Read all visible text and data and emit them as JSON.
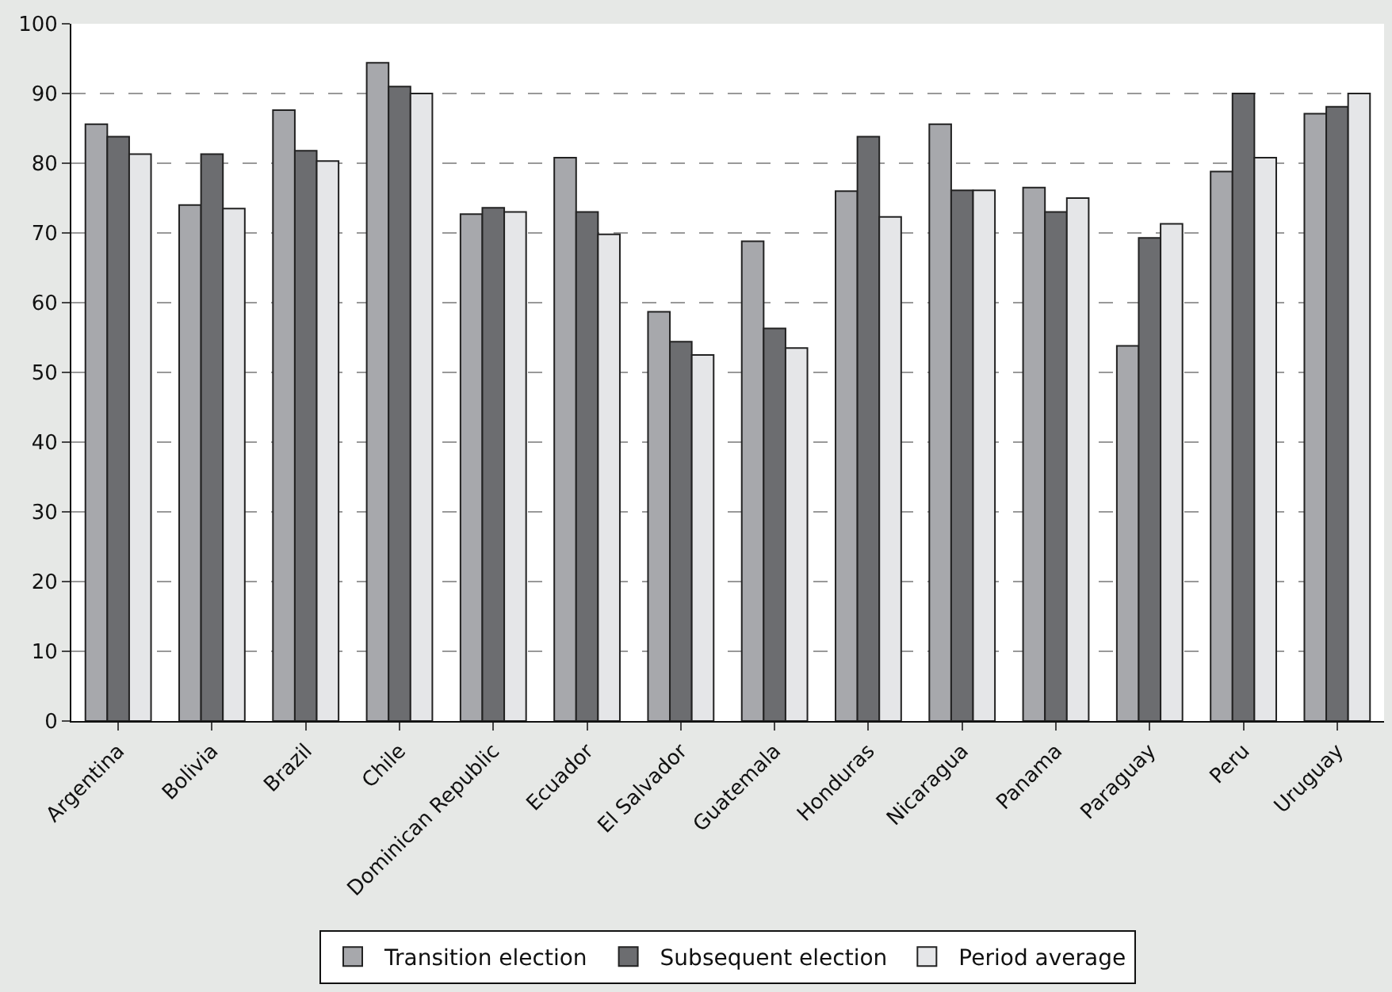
{
  "chart_data": {
    "type": "bar",
    "categories": [
      "Argentina",
      "Bolivia",
      "Brazil",
      "Chile",
      "Dominican Republic",
      "Ecuador",
      "El Salvador",
      "Guatemala",
      "Honduras",
      "Nicaragua",
      "Panama",
      "Paraguay",
      "Peru",
      "Uruguay"
    ],
    "series": [
      {
        "name": "Transition election",
        "color": "#a7a8ac",
        "values": [
          85.6,
          74,
          87.6,
          94.4,
          72.7,
          80.8,
          58.7,
          68.8,
          76,
          85.6,
          76.5,
          53.8,
          78.8,
          87.1
        ]
      },
      {
        "name": "Subsequent election",
        "color": "#6c6d70",
        "values": [
          83.8,
          81.3,
          81.8,
          91,
          73.6,
          73,
          54.4,
          56.3,
          83.8,
          76.1,
          73,
          69.3,
          90,
          88.1
        ]
      },
      {
        "name": "Period average",
        "color": "#e5e6e8",
        "values": [
          81.3,
          73.5,
          80.3,
          90,
          73,
          69.8,
          52.5,
          53.5,
          72.3,
          76.1,
          75,
          71.3,
          80.8,
          90
        ]
      }
    ],
    "ylim": [
      0,
      100
    ],
    "yticks": [
      0,
      10,
      20,
      30,
      40,
      50,
      60,
      70,
      80,
      90,
      100
    ],
    "grid": "y",
    "legend": "bottom"
  }
}
